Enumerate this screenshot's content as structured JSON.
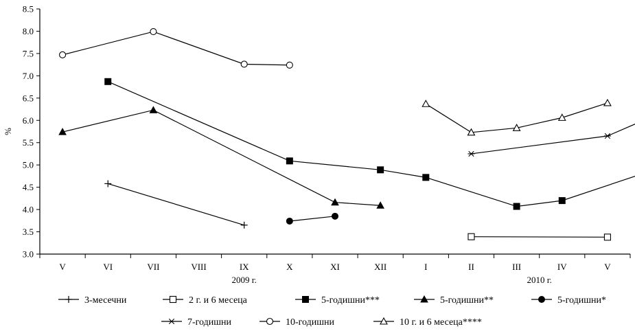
{
  "chart_data": {
    "type": "line",
    "title": "",
    "xlabel": "",
    "ylabel": "%",
    "ylim": [
      3.0,
      8.5
    ],
    "yticks": [
      "3.0",
      "3.5",
      "4.0",
      "4.5",
      "5.0",
      "5.5",
      "6.0",
      "6.5",
      "7.0",
      "7.5",
      "8.0",
      "8.5"
    ],
    "categories": [
      "V",
      "VI",
      "VII",
      "VIII",
      "IX",
      "X",
      "XI",
      "XII",
      "I",
      "II",
      "III",
      "IV",
      "V"
    ],
    "year_labels": [
      "2009 г.",
      "2010 г."
    ],
    "grid": false,
    "legend_position": "bottom",
    "series": [
      {
        "name": "3-месечни",
        "marker": "plus",
        "points": [
          [
            1.5,
            4.58
          ],
          [
            4.5,
            3.65
          ]
        ]
      },
      {
        "name": "2 г. и 6 месеца",
        "marker": "square-open",
        "points": [
          [
            9.5,
            3.39
          ],
          [
            12.5,
            3.38
          ]
        ]
      },
      {
        "name": "5-годишни***",
        "marker": "square-filled",
        "points": [
          [
            1.5,
            6.87
          ],
          [
            5.5,
            5.09
          ],
          [
            7.5,
            4.89
          ],
          [
            8.5,
            4.72
          ],
          [
            10.5,
            4.07
          ],
          [
            11.5,
            4.2
          ],
          [
            13.5,
            4.88
          ]
        ]
      },
      {
        "name": "5-годишни**",
        "marker": "triangle-filled",
        "points": [
          [
            0.5,
            5.74
          ],
          [
            2.5,
            6.23
          ],
          [
            6.5,
            4.16
          ],
          [
            7.5,
            4.09
          ]
        ]
      },
      {
        "name": "5-годишни*",
        "marker": "circle-filled",
        "points": [
          [
            5.5,
            3.74
          ],
          [
            6.5,
            3.85
          ]
        ]
      },
      {
        "name": "7-годишни",
        "marker": "asterisk",
        "points": [
          [
            9.5,
            5.25
          ],
          [
            12.5,
            5.65
          ],
          [
            13.5,
            6.09
          ]
        ]
      },
      {
        "name": "10-годишни",
        "marker": "circle-open",
        "points": [
          [
            0.5,
            7.47
          ],
          [
            2.5,
            7.99
          ],
          [
            4.5,
            7.26
          ],
          [
            5.5,
            7.24
          ]
        ]
      },
      {
        "name": "10 г. и 6 месеца****",
        "marker": "triangle-open",
        "points": [
          [
            8.5,
            6.37
          ],
          [
            9.5,
            5.73
          ],
          [
            10.5,
            5.83
          ],
          [
            11.5,
            6.06
          ],
          [
            12.5,
            6.39
          ]
        ]
      }
    ]
  }
}
